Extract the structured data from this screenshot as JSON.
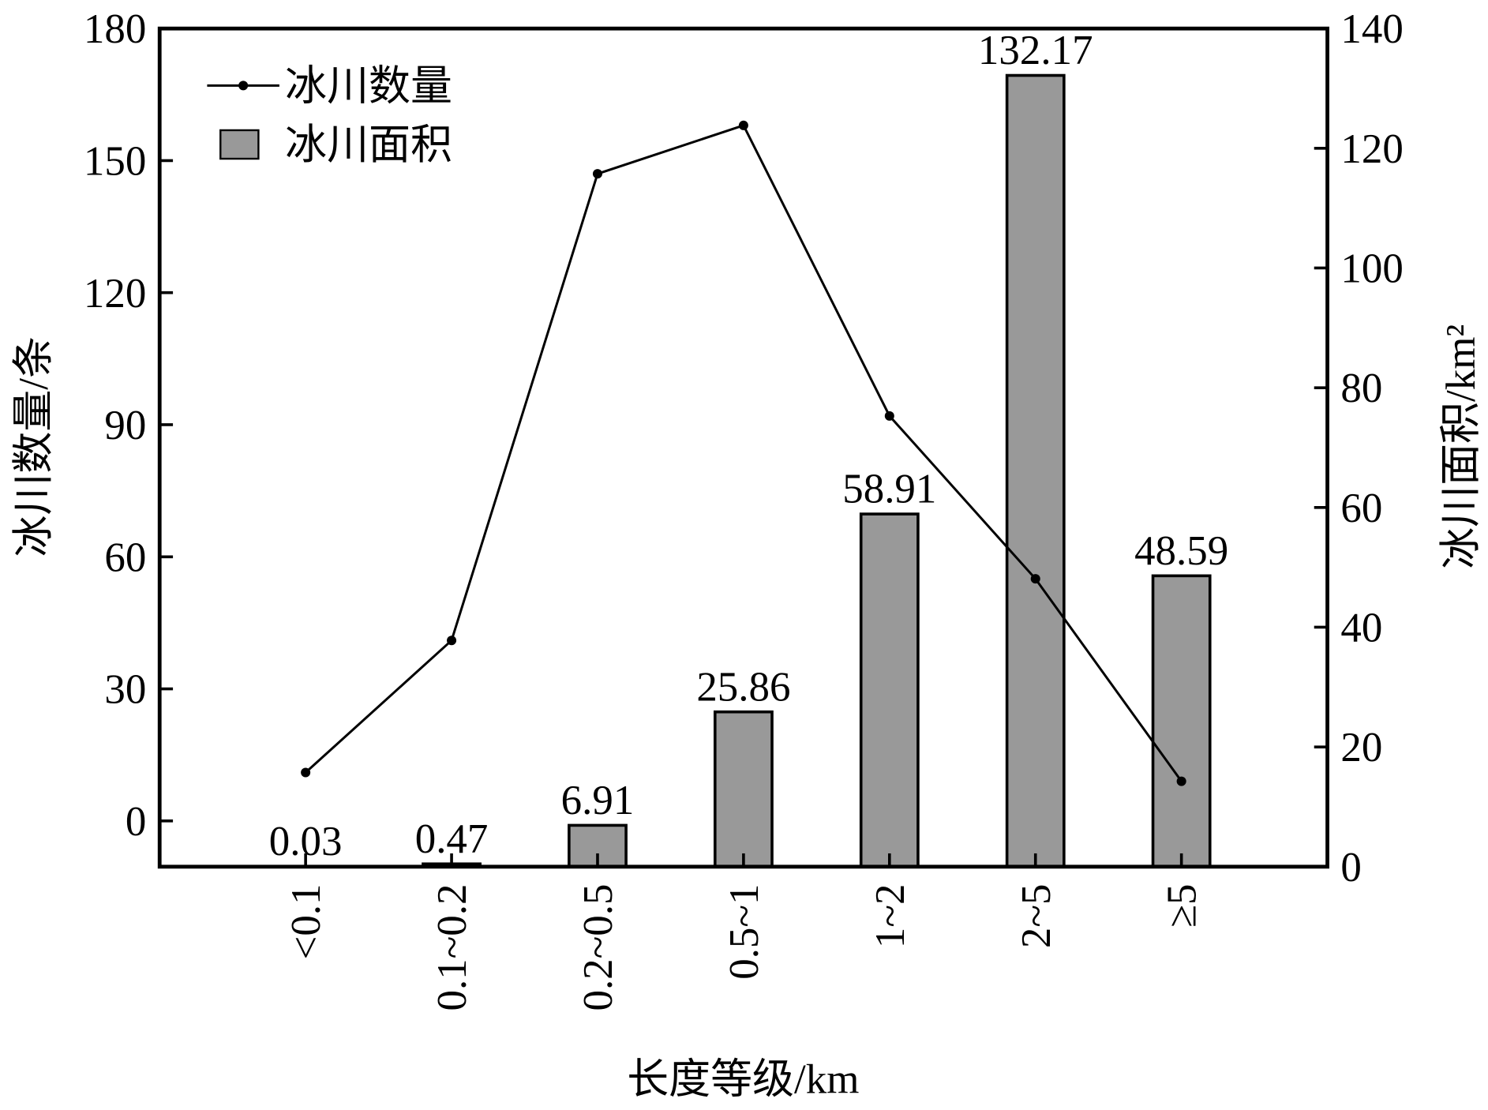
{
  "chart_data": {
    "type": "bar-line",
    "xlabel": "长度等级/km",
    "ylabel": "冰川数量/条",
    "y2label": "冰川面积/km²",
    "categories": [
      "<0.1",
      "0.1~0.2",
      "0.2~0.5",
      "0.5~1",
      "1~2",
      "2~5",
      "≥5"
    ],
    "series": [
      {
        "name": "冰川数量",
        "type": "line",
        "color": "#000000",
        "values": [
          11,
          41,
          147,
          158,
          92,
          55,
          9
        ]
      },
      {
        "name": "冰川面积",
        "type": "bar",
        "axis": "y2",
        "color": "#999999",
        "values": [
          0.03,
          0.47,
          6.91,
          25.86,
          58.91,
          132.17,
          48.59
        ]
      }
    ],
    "ylim": [
      -10.4,
      180
    ],
    "yticks": [
      0,
      30,
      60,
      90,
      120,
      150,
      180
    ],
    "y2lim": [
      0,
      140
    ],
    "y2ticks": [
      0,
      20,
      40,
      60,
      80,
      100,
      120,
      140
    ],
    "legend": "upper left"
  }
}
